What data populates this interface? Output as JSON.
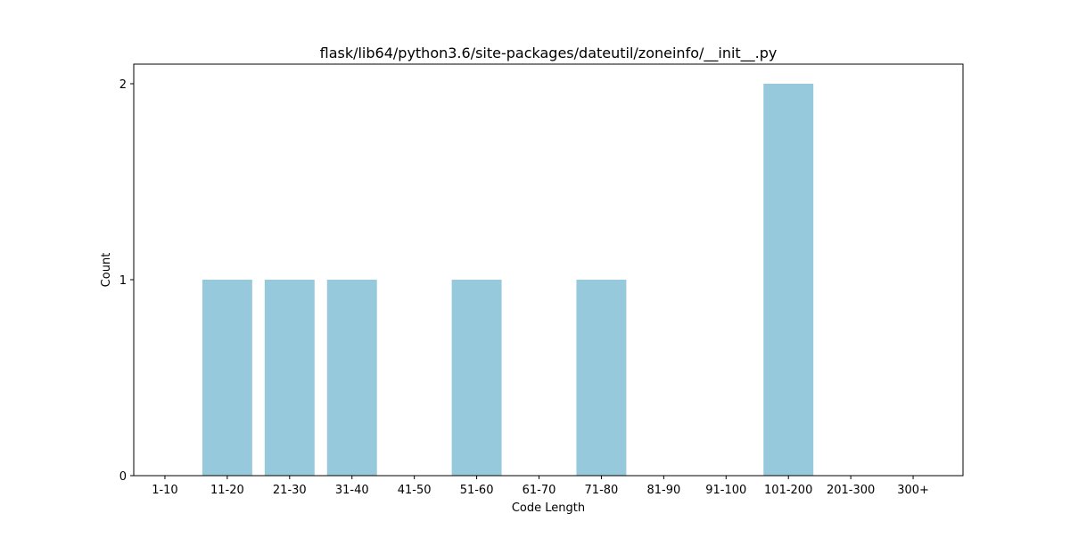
{
  "chart_data": {
    "type": "bar",
    "title": "flask/lib64/python3.6/site-packages/dateutil/zoneinfo/__init__.py",
    "xlabel": "Code Length",
    "ylabel": "Count",
    "categories": [
      "1-10",
      "11-20",
      "21-30",
      "31-40",
      "41-50",
      "51-60",
      "61-70",
      "71-80",
      "81-90",
      "91-100",
      "101-200",
      "201-300",
      "300+"
    ],
    "values": [
      0,
      1,
      1,
      1,
      0,
      1,
      0,
      1,
      0,
      0,
      2,
      0,
      0
    ],
    "yticks": [
      0,
      1,
      2
    ],
    "ylim": [
      0,
      2.1
    ],
    "bar_color": "#96c9dc",
    "grid": false,
    "legend": false
  }
}
